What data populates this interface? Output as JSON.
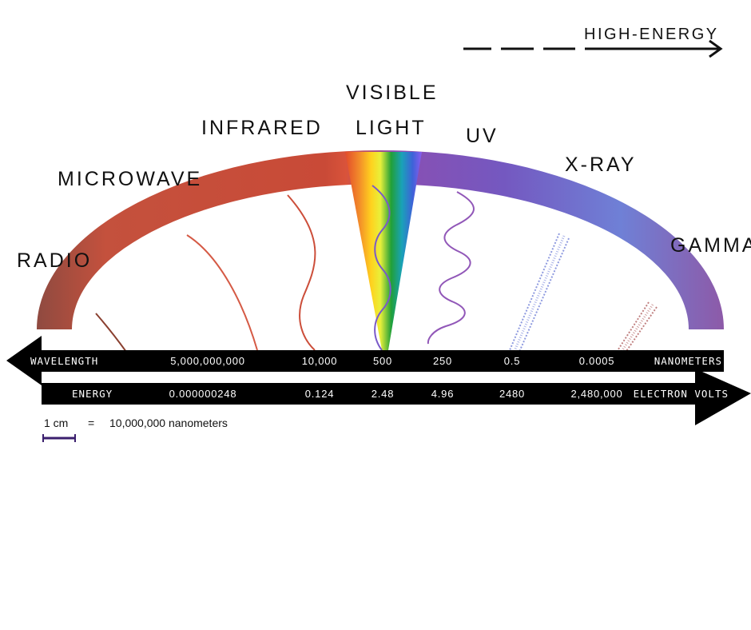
{
  "high_energy_label": "HIGH-ENERGY",
  "bands": [
    {
      "name": "RADIO"
    },
    {
      "name": "MICROWAVE"
    },
    {
      "name": "INFRARED"
    },
    {
      "name": "VISIBLE",
      "name2": "LIGHT"
    },
    {
      "name": "UV"
    },
    {
      "name": "X-RAY"
    },
    {
      "name": "GAMMA"
    }
  ],
  "wavelength": {
    "label": "WAVELENGTH",
    "unit": "NANOMETERS",
    "values": [
      "5,000,000,000",
      "10,000",
      "500",
      "250",
      "0.5",
      "0.0005"
    ]
  },
  "energy": {
    "label": "ENERGY",
    "unit": "ELECTRON VOLTS",
    "values": [
      "0.000000248",
      "0.124",
      "2.48",
      "4.96",
      "2480",
      "2,480,000"
    ]
  },
  "scale": {
    "left": "1 cm",
    "equals": "=",
    "right": "10,000,000 nanometers",
    "bar_color": "#3b1f6e"
  },
  "colors": {
    "radio": "#9a4a3a",
    "microwave": "#c9523e",
    "infrared": "#c24a38",
    "uv": "#8a4fb0",
    "xray": "#6a79d2",
    "gamma": "#8a5fb0"
  }
}
